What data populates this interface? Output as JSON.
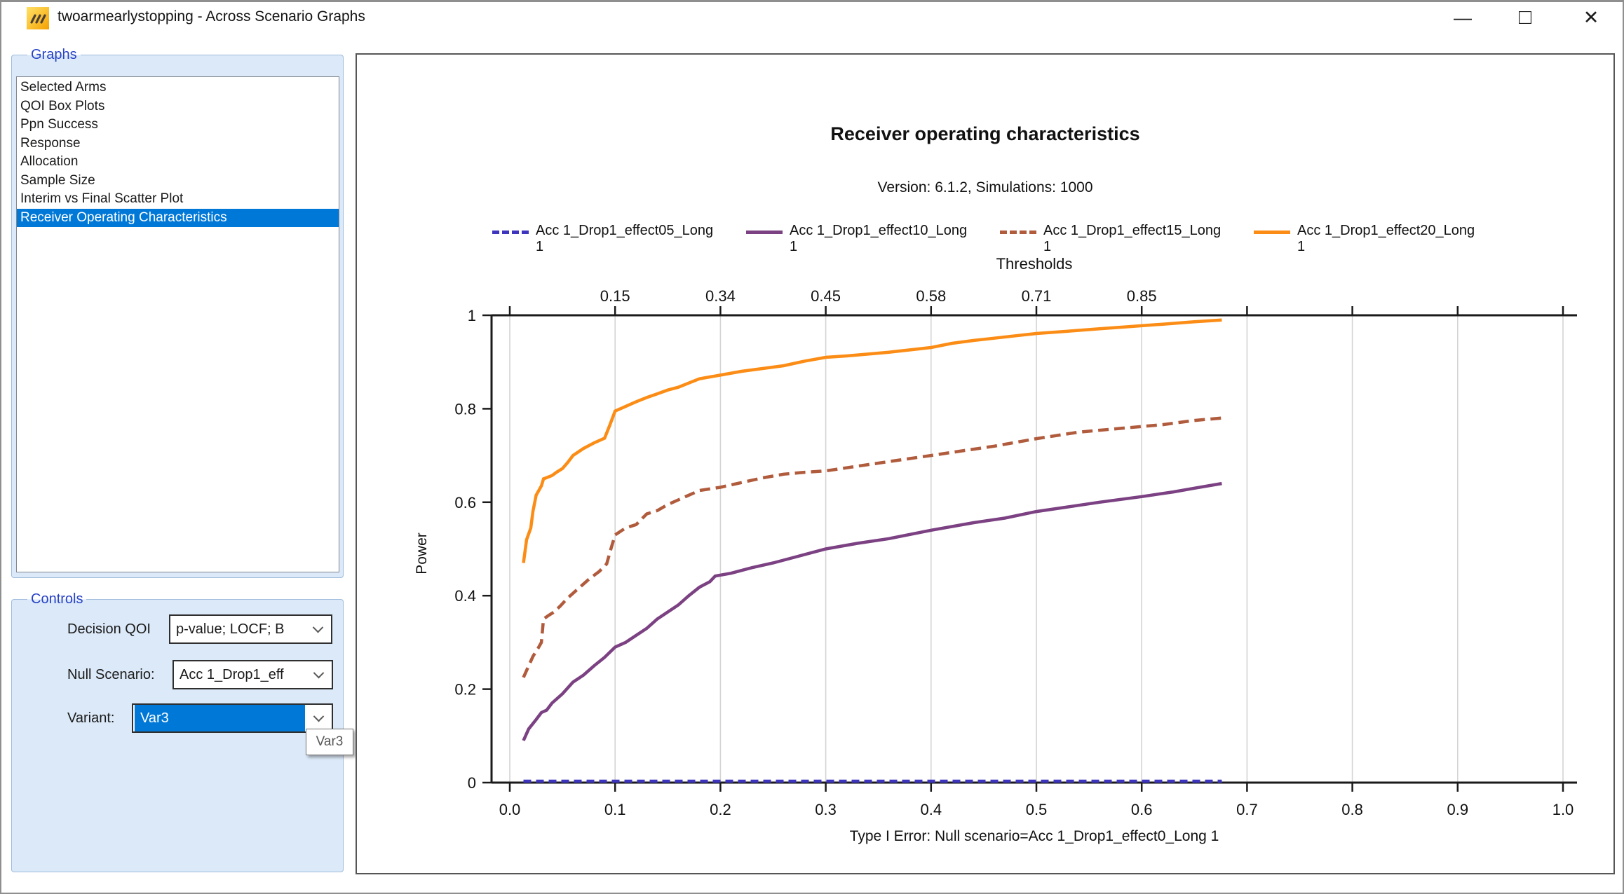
{
  "window": {
    "title": "twoarmearlystopping - Across Scenario Graphs",
    "minimize_glyph": "—",
    "maximize_glyph": "□",
    "close_glyph": "✕"
  },
  "colors": {
    "selection": "#0078d7",
    "panel_bg": "#dce9f8",
    "group_label": "#2742c6",
    "grid": "#d4d4d4",
    "axis": "#1a1a1a"
  },
  "sidebar": {
    "group_label": "Graphs",
    "items": [
      "Selected Arms",
      "QOI Box Plots",
      "Ppn Success",
      "Response",
      "Allocation",
      "Sample Size",
      "Interim vs Final Scatter Plot",
      "Receiver Operating Characteristics"
    ],
    "selected_index": 7
  },
  "controls_panel": {
    "group_label": "Controls",
    "decision_qoi": {
      "label": "Decision QOI",
      "value": "p-value; LOCF; B"
    },
    "null_scenario": {
      "label": "Null Scenario:",
      "value": "Acc 1_Drop1_eff"
    },
    "variant": {
      "label": "Variant:",
      "value": "Var3"
    },
    "tooltip": "Var3"
  },
  "chart_data": {
    "type": "line",
    "title": "Receiver operating characteristics",
    "subtitle": "Version: 6.1.2, Simulations: 1000",
    "xlabel": "Type I Error: Null scenario=Acc 1_Drop1_effect0_Long 1",
    "ylabel": "Power",
    "top_axis_label": "Thresholds",
    "xlim": [
      0,
      1
    ],
    "ylim": [
      0,
      1
    ],
    "grid": "vertical-only",
    "legend_position": "top",
    "x_ticks": [
      {
        "v": 0.0,
        "label": "0.0"
      },
      {
        "v": 0.1,
        "label": "0.1"
      },
      {
        "v": 0.2,
        "label": "0.2"
      },
      {
        "v": 0.3,
        "label": "0.3"
      },
      {
        "v": 0.4,
        "label": "0.4"
      },
      {
        "v": 0.5,
        "label": "0.5"
      },
      {
        "v": 0.6,
        "label": "0.6"
      },
      {
        "v": 0.7,
        "label": "0.7"
      },
      {
        "v": 0.8,
        "label": "0.8"
      },
      {
        "v": 0.9,
        "label": "0.9"
      },
      {
        "v": 1.0,
        "label": "1.0"
      }
    ],
    "y_ticks": [
      {
        "v": 0,
        "label": "0"
      },
      {
        "v": 0.2,
        "label": "0.2"
      },
      {
        "v": 0.4,
        "label": "0.4"
      },
      {
        "v": 0.6,
        "label": "0.6"
      },
      {
        "v": 0.8,
        "label": "0.8"
      },
      {
        "v": 1,
        "label": "1"
      }
    ],
    "top_axis_ticks": [
      {
        "x": 0.1,
        "label": "0.15"
      },
      {
        "x": 0.2,
        "label": "0.34"
      },
      {
        "x": 0.3,
        "label": "0.45"
      },
      {
        "x": 0.4,
        "label": "0.58"
      },
      {
        "x": 0.5,
        "label": "0.71"
      },
      {
        "x": 0.6,
        "label": "0.85"
      }
    ],
    "series": [
      {
        "name": "Acc 1_Drop1_effect05_Long 1",
        "color": "#3e35be",
        "dash": "dashed",
        "dash_array": "11 7",
        "points": [
          [
            0.013,
            0.003
          ],
          [
            0.05,
            0.003
          ],
          [
            0.1,
            0.003
          ],
          [
            0.15,
            0.003
          ],
          [
            0.2,
            0.003
          ],
          [
            0.25,
            0.003
          ],
          [
            0.3,
            0.003
          ],
          [
            0.35,
            0.003
          ],
          [
            0.4,
            0.003
          ],
          [
            0.45,
            0.003
          ],
          [
            0.5,
            0.003
          ],
          [
            0.55,
            0.003
          ],
          [
            0.6,
            0.003
          ],
          [
            0.65,
            0.003
          ],
          [
            0.676,
            0.003
          ]
        ]
      },
      {
        "name": "Acc 1_Drop1_effect10_Long 1",
        "color": "#7b4182",
        "dash": "solid",
        "dash_array": "",
        "points": [
          [
            0.013,
            0.09
          ],
          [
            0.018,
            0.115
          ],
          [
            0.025,
            0.135
          ],
          [
            0.03,
            0.15
          ],
          [
            0.035,
            0.155
          ],
          [
            0.04,
            0.17
          ],
          [
            0.05,
            0.19
          ],
          [
            0.06,
            0.215
          ],
          [
            0.07,
            0.23
          ],
          [
            0.08,
            0.25
          ],
          [
            0.09,
            0.268
          ],
          [
            0.1,
            0.29
          ],
          [
            0.11,
            0.3
          ],
          [
            0.12,
            0.315
          ],
          [
            0.13,
            0.33
          ],
          [
            0.14,
            0.35
          ],
          [
            0.15,
            0.365
          ],
          [
            0.16,
            0.38
          ],
          [
            0.17,
            0.4
          ],
          [
            0.18,
            0.418
          ],
          [
            0.19,
            0.43
          ],
          [
            0.195,
            0.442
          ],
          [
            0.21,
            0.448
          ],
          [
            0.23,
            0.46
          ],
          [
            0.25,
            0.47
          ],
          [
            0.27,
            0.482
          ],
          [
            0.3,
            0.5
          ],
          [
            0.33,
            0.512
          ],
          [
            0.36,
            0.522
          ],
          [
            0.4,
            0.54
          ],
          [
            0.44,
            0.556
          ],
          [
            0.47,
            0.566
          ],
          [
            0.5,
            0.58
          ],
          [
            0.53,
            0.59
          ],
          [
            0.56,
            0.6
          ],
          [
            0.6,
            0.612
          ],
          [
            0.63,
            0.622
          ],
          [
            0.65,
            0.63
          ],
          [
            0.676,
            0.64
          ]
        ]
      },
      {
        "name": "Acc 1_Drop1_effect15_Long 1",
        "color": "#b15b3d",
        "dash": "dashed",
        "dash_array": "15 8",
        "points": [
          [
            0.013,
            0.225
          ],
          [
            0.018,
            0.25
          ],
          [
            0.022,
            0.27
          ],
          [
            0.027,
            0.288
          ],
          [
            0.03,
            0.3
          ],
          [
            0.032,
            0.35
          ],
          [
            0.037,
            0.358
          ],
          [
            0.042,
            0.365
          ],
          [
            0.048,
            0.378
          ],
          [
            0.055,
            0.395
          ],
          [
            0.065,
            0.415
          ],
          [
            0.075,
            0.435
          ],
          [
            0.085,
            0.452
          ],
          [
            0.092,
            0.468
          ],
          [
            0.096,
            0.5
          ],
          [
            0.1,
            0.53
          ],
          [
            0.11,
            0.545
          ],
          [
            0.12,
            0.552
          ],
          [
            0.13,
            0.575
          ],
          [
            0.14,
            0.582
          ],
          [
            0.15,
            0.595
          ],
          [
            0.16,
            0.605
          ],
          [
            0.17,
            0.615
          ],
          [
            0.18,
            0.625
          ],
          [
            0.2,
            0.632
          ],
          [
            0.22,
            0.642
          ],
          [
            0.24,
            0.652
          ],
          [
            0.26,
            0.66
          ],
          [
            0.28,
            0.664
          ],
          [
            0.3,
            0.667
          ],
          [
            0.33,
            0.677
          ],
          [
            0.36,
            0.687
          ],
          [
            0.4,
            0.7
          ],
          [
            0.43,
            0.71
          ],
          [
            0.46,
            0.72
          ],
          [
            0.5,
            0.736
          ],
          [
            0.54,
            0.75
          ],
          [
            0.58,
            0.758
          ],
          [
            0.62,
            0.766
          ],
          [
            0.65,
            0.775
          ],
          [
            0.676,
            0.78
          ]
        ]
      },
      {
        "name": "Acc 1_Drop1_effect20_Long 1",
        "color": "#fb8d16",
        "dash": "solid",
        "dash_array": "",
        "points": [
          [
            0.013,
            0.47
          ],
          [
            0.016,
            0.52
          ],
          [
            0.02,
            0.545
          ],
          [
            0.022,
            0.58
          ],
          [
            0.025,
            0.615
          ],
          [
            0.03,
            0.635
          ],
          [
            0.032,
            0.65
          ],
          [
            0.04,
            0.657
          ],
          [
            0.045,
            0.665
          ],
          [
            0.05,
            0.672
          ],
          [
            0.055,
            0.685
          ],
          [
            0.06,
            0.7
          ],
          [
            0.07,
            0.715
          ],
          [
            0.08,
            0.727
          ],
          [
            0.09,
            0.737
          ],
          [
            0.095,
            0.765
          ],
          [
            0.1,
            0.795
          ],
          [
            0.11,
            0.805
          ],
          [
            0.12,
            0.815
          ],
          [
            0.13,
            0.824
          ],
          [
            0.14,
            0.832
          ],
          [
            0.15,
            0.84
          ],
          [
            0.16,
            0.846
          ],
          [
            0.17,
            0.855
          ],
          [
            0.18,
            0.864
          ],
          [
            0.19,
            0.868
          ],
          [
            0.2,
            0.872
          ],
          [
            0.22,
            0.88
          ],
          [
            0.24,
            0.886
          ],
          [
            0.26,
            0.892
          ],
          [
            0.28,
            0.902
          ],
          [
            0.3,
            0.91
          ],
          [
            0.32,
            0.913
          ],
          [
            0.34,
            0.917
          ],
          [
            0.36,
            0.921
          ],
          [
            0.38,
            0.926
          ],
          [
            0.4,
            0.931
          ],
          [
            0.42,
            0.94
          ],
          [
            0.44,
            0.946
          ],
          [
            0.46,
            0.951
          ],
          [
            0.48,
            0.956
          ],
          [
            0.5,
            0.961
          ],
          [
            0.53,
            0.966
          ],
          [
            0.56,
            0.971
          ],
          [
            0.59,
            0.976
          ],
          [
            0.62,
            0.981
          ],
          [
            0.65,
            0.986
          ],
          [
            0.676,
            0.99
          ]
        ]
      }
    ]
  }
}
